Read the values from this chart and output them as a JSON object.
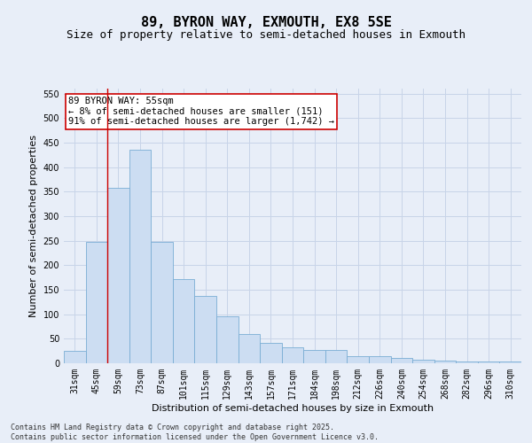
{
  "title": "89, BYRON WAY, EXMOUTH, EX8 5SE",
  "subtitle": "Size of property relative to semi-detached houses in Exmouth",
  "xlabel": "Distribution of semi-detached houses by size in Exmouth",
  "ylabel": "Number of semi-detached properties",
  "categories": [
    "31sqm",
    "45sqm",
    "59sqm",
    "73sqm",
    "87sqm",
    "101sqm",
    "115sqm",
    "129sqm",
    "143sqm",
    "157sqm",
    "171sqm",
    "184sqm",
    "198sqm",
    "212sqm",
    "226sqm",
    "240sqm",
    "254sqm",
    "268sqm",
    "282sqm",
    "296sqm",
    "310sqm"
  ],
  "values": [
    25,
    248,
    358,
    435,
    248,
    172,
    138,
    95,
    60,
    42,
    32,
    28,
    28,
    14,
    14,
    10,
    7,
    5,
    4,
    3,
    4
  ],
  "bar_color": "#ccddf2",
  "bar_edge_color": "#7aadd4",
  "grid_color": "#c8d4e8",
  "background_color": "#e8eef8",
  "annotation_text": "89 BYRON WAY: 55sqm\n← 8% of semi-detached houses are smaller (151)\n91% of semi-detached houses are larger (1,742) →",
  "vline_x": 1.5,
  "vline_color": "#cc0000",
  "ylim": [
    0,
    560
  ],
  "yticks": [
    0,
    50,
    100,
    150,
    200,
    250,
    300,
    350,
    400,
    450,
    500,
    550
  ],
  "footer_text": "Contains HM Land Registry data © Crown copyright and database right 2025.\nContains public sector information licensed under the Open Government Licence v3.0.",
  "title_fontsize": 11,
  "subtitle_fontsize": 9,
  "axis_label_fontsize": 8,
  "tick_fontsize": 7,
  "annotation_fontsize": 7.5,
  "footer_fontsize": 6
}
